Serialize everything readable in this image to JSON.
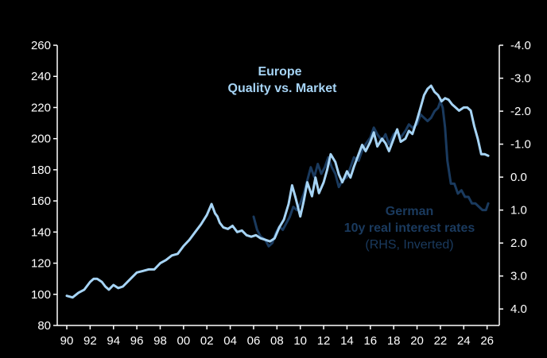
{
  "chart_data": {
    "type": "line",
    "title": "Europe\nQuality vs. Market",
    "title_lines": [
      "Europe",
      "Quality vs. Market"
    ],
    "x_tick_labels": [
      "90",
      "92",
      "94",
      "96",
      "98",
      "00",
      "02",
      "04",
      "06",
      "08",
      "10",
      "12",
      "14",
      "16",
      "18",
      "20",
      "22",
      "24",
      "26"
    ],
    "x_range": [
      1990,
      2026.5
    ],
    "left_axis": {
      "label": "",
      "range": [
        80,
        260
      ],
      "ticks": [
        80,
        100,
        120,
        140,
        160,
        180,
        200,
        220,
        240,
        260
      ],
      "tick_labels": [
        "80",
        "100",
        "120",
        "140",
        "160",
        "180",
        "200",
        "220",
        "240",
        "260"
      ]
    },
    "right_axis": {
      "label": "",
      "inverted": true,
      "range": [
        4.5,
        -4.0
      ],
      "ticks": [
        4.0,
        3.0,
        2.0,
        1.0,
        0.0,
        -1.0,
        -2.0,
        -3.0,
        -4.0
      ],
      "tick_labels": [
        "4.0",
        "3.0",
        "2.0",
        "1.0",
        "0.0",
        "-1.0",
        "-2.0",
        "-3.0",
        "-4.0"
      ]
    },
    "series": [
      {
        "name": "Europe Quality vs. Market",
        "axis": "left",
        "color": "#a6d4f5",
        "x": [
          1990.0,
          1990.5,
          1991.0,
          1991.5,
          1992.0,
          1992.3,
          1992.6,
          1993.0,
          1993.3,
          1993.6,
          1994.0,
          1994.4,
          1994.8,
          1995.2,
          1995.6,
          1996.0,
          1996.5,
          1997.0,
          1997.5,
          1998.0,
          1998.5,
          1999.0,
          1999.5,
          2000.0,
          2000.5,
          2001.0,
          2001.5,
          2002.0,
          2002.4,
          2002.7,
          2002.9,
          2003.1,
          2003.4,
          2003.8,
          2004.2,
          2004.6,
          2005.0,
          2005.4,
          2005.8,
          2006.2,
          2006.6,
          2007.0,
          2007.4,
          2007.8,
          2008.2,
          2008.6,
          2009.0,
          2009.3,
          2009.6,
          2010.0,
          2010.3,
          2010.6,
          2011.0,
          2011.3,
          2011.6,
          2012.0,
          2012.3,
          2012.6,
          2013.0,
          2013.3,
          2013.6,
          2014.0,
          2014.3,
          2014.6,
          2015.0,
          2015.3,
          2015.6,
          2016.0,
          2016.3,
          2016.6,
          2017.0,
          2017.3,
          2017.6,
          2018.0,
          2018.3,
          2018.6,
          2019.0,
          2019.3,
          2019.6,
          2020.0,
          2020.3,
          2020.6,
          2020.9,
          2021.2,
          2021.5,
          2021.8,
          2022.1,
          2022.4,
          2022.7,
          2023.0,
          2023.3,
          2023.6,
          2024.0,
          2024.3,
          2024.6,
          2024.9,
          2025.2,
          2025.5,
          2025.8,
          2026.1
        ],
        "values": [
          99,
          98,
          101,
          103,
          108,
          110,
          110,
          108,
          105,
          103,
          106,
          104,
          105,
          108,
          111,
          114,
          115,
          116,
          116,
          120,
          122,
          125,
          126,
          131,
          135,
          140,
          145,
          151,
          158,
          152,
          150,
          146,
          143,
          142,
          144,
          140,
          141,
          138,
          137,
          138,
          136,
          135,
          134,
          136,
          143,
          148,
          158,
          170,
          162,
          150,
          160,
          172,
          163,
          175,
          165,
          172,
          180,
          190,
          185,
          177,
          172,
          179,
          175,
          182,
          190,
          196,
          192,
          198,
          204,
          195,
          200,
          197,
          192,
          200,
          206,
          198,
          200,
          205,
          203,
          212,
          220,
          228,
          232,
          234,
          230,
          228,
          224,
          226,
          225,
          222,
          220,
          218,
          220,
          220,
          218,
          208,
          200,
          190,
          190,
          189
        ]
      },
      {
        "name": "German 10y real interest rates (RHS, Inverted)",
        "axis": "right",
        "color": "#1a3a5e",
        "x": [
          2006.0,
          2006.3,
          2006.6,
          2007.0,
          2007.3,
          2007.6,
          2007.9,
          2008.2,
          2008.5,
          2008.8,
          2009.1,
          2009.4,
          2009.7,
          2010.0,
          2010.3,
          2010.6,
          2010.9,
          2011.2,
          2011.5,
          2011.8,
          2012.1,
          2012.4,
          2012.7,
          2013.0,
          2013.3,
          2013.6,
          2014.0,
          2014.3,
          2014.6,
          2015.0,
          2015.3,
          2015.6,
          2016.0,
          2016.3,
          2016.6,
          2017.0,
          2017.3,
          2017.6,
          2018.0,
          2018.3,
          2018.6,
          2019.0,
          2019.3,
          2019.6,
          2020.0,
          2020.3,
          2020.6,
          2020.9,
          2021.2,
          2021.5,
          2021.8,
          2022.0,
          2022.2,
          2022.4,
          2022.6,
          2022.9,
          2023.2,
          2023.5,
          2023.8,
          2024.1,
          2024.4,
          2024.7,
          2025.0,
          2025.3,
          2025.6,
          2025.9,
          2026.1
        ],
        "values": [
          1.2,
          1.6,
          1.8,
          1.9,
          2.1,
          2.0,
          1.7,
          1.5,
          1.6,
          1.4,
          1.2,
          0.9,
          1.0,
          0.8,
          0.5,
          0.1,
          -0.3,
          0.0,
          -0.4,
          -0.1,
          -0.3,
          -0.6,
          -0.3,
          -0.1,
          0.3,
          0.1,
          0.0,
          -0.3,
          -0.6,
          -0.5,
          -0.8,
          -1.0,
          -1.2,
          -1.5,
          -1.3,
          -1.1,
          -1.3,
          -1.0,
          -1.3,
          -1.4,
          -1.2,
          -1.4,
          -1.6,
          -1.5,
          -1.6,
          -1.9,
          -1.8,
          -1.7,
          -1.8,
          -2.0,
          -2.1,
          -2.3,
          -2.1,
          -1.5,
          -0.5,
          0.2,
          0.2,
          0.5,
          0.4,
          0.6,
          0.6,
          0.8,
          0.8,
          0.9,
          1.0,
          1.0,
          0.8
        ]
      }
    ],
    "annotations": [
      {
        "name": "rhs-series-label",
        "lines": [
          "German",
          "10y  real interest rates",
          "(RHS, Inverted)"
        ],
        "color": "#1a3a5e"
      }
    ],
    "grid": false,
    "legend": "none"
  }
}
